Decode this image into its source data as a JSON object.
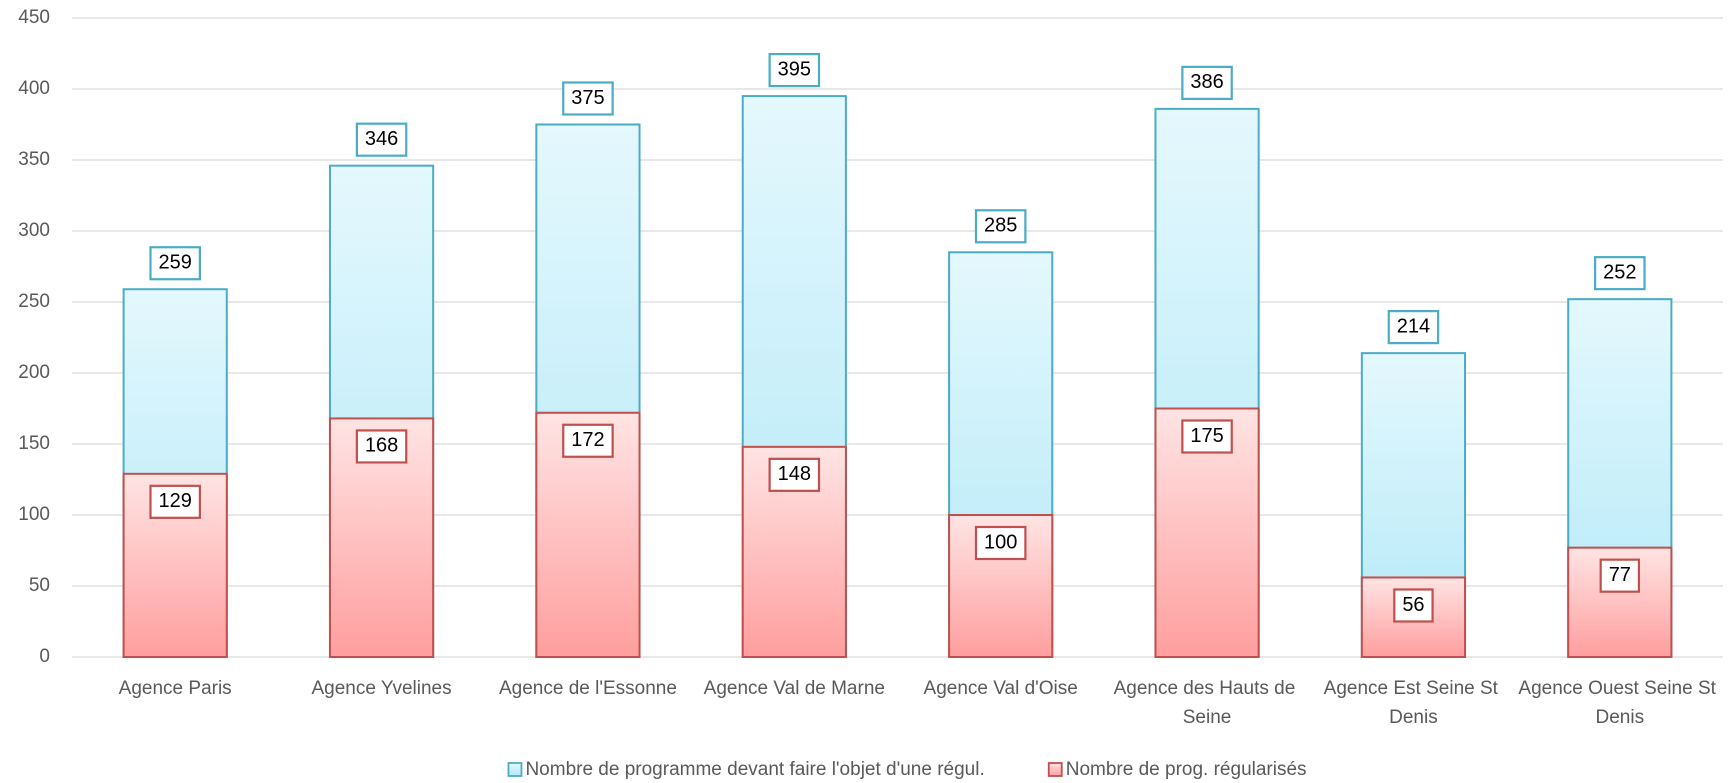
{
  "chart_data": {
    "type": "bar",
    "overlap": true,
    "categories": [
      "Agence Paris",
      "Agence Yvelines",
      "Agence de l'Essonne",
      "Agence Val de Marne",
      "Agence Val d'Oise",
      "Agence des Hauts de Seine",
      "Agence Est Seine St Denis",
      "Agence Ouest Seine St Denis"
    ],
    "series": [
      {
        "name": "Nombre de programme devant faire l'objet d'une régul.",
        "color": "#4bacc6",
        "gradient": [
          "#e4f8fd",
          "#b2e8f8"
        ],
        "values": [
          259,
          346,
          375,
          395,
          285,
          386,
          214,
          252
        ]
      },
      {
        "name": "Nombre de prog. régularisés",
        "color": "#c0504d",
        "gradient": [
          "#ffe4e4",
          "#ff9e9e"
        ],
        "values": [
          129,
          168,
          172,
          148,
          100,
          175,
          56,
          77
        ]
      }
    ],
    "ylim": [
      0,
      450
    ],
    "yticks": [
      0,
      50,
      100,
      150,
      200,
      250,
      300,
      350,
      400,
      450
    ],
    "grid": true,
    "legend": "bottom"
  }
}
